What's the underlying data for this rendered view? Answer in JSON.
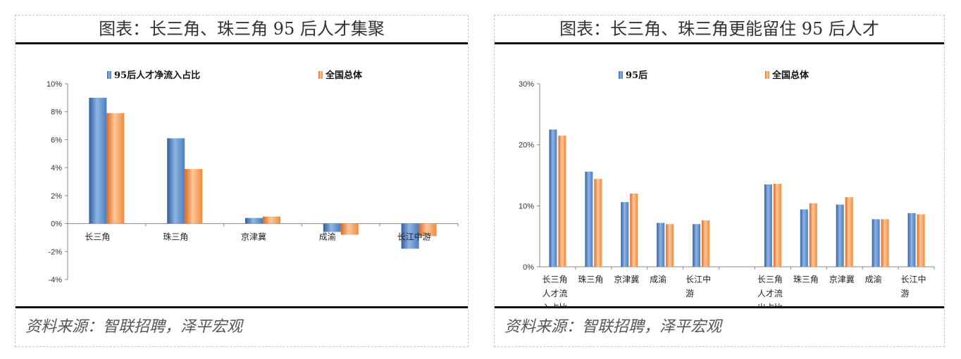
{
  "left": {
    "title": "图表：长三角、珠三角 95 后人才集聚",
    "source": "资料来源：智联招聘，泽平宏观",
    "chart_data": {
      "type": "bar",
      "categories": [
        "长三角",
        "珠三角",
        "京津冀",
        "成渝",
        "长江中游"
      ],
      "series": [
        {
          "name": "95后人才净流入占比",
          "values": [
            9.0,
            6.1,
            0.4,
            -0.6,
            -1.8
          ]
        },
        {
          "name": "全国总体",
          "values": [
            7.9,
            3.9,
            0.5,
            -0.8,
            -0.9
          ]
        }
      ],
      "ylim": [
        -4,
        10
      ],
      "yticks": [
        -4,
        -2,
        0,
        2,
        4,
        6,
        8,
        10
      ],
      "ytick_labels": [
        "-4%",
        "-2%",
        "0%",
        "2%",
        "4%",
        "6%",
        "8%",
        "10%"
      ],
      "legend_position": "top",
      "colors": [
        "#4a7fc1",
        "#f08a3c"
      ]
    }
  },
  "right": {
    "title": "图表：长三角、珠三角更能留住 95 后人才",
    "source": "资料来源：智联招聘，泽平宏观",
    "chart_data": {
      "type": "bar",
      "groups": [
        {
          "label": "长三角人才流入占比",
          "categories": [
            "长三角\n人才流\n入占比",
            "珠三角",
            "京津冀",
            "成渝",
            "长江中\n游"
          ]
        },
        {
          "label": "长三角人才流出占比",
          "categories": [
            "长三角\n人才流\n出占比",
            "珠三角",
            "京津冀",
            "成渝",
            "长江中\n游"
          ]
        }
      ],
      "series": [
        {
          "name": "95后",
          "values": [
            22.5,
            15.6,
            10.6,
            7.2,
            7.0,
            13.5,
            9.4,
            10.2,
            7.8,
            8.8
          ]
        },
        {
          "name": "全国总体",
          "values": [
            21.5,
            14.4,
            12.0,
            7.0,
            7.6,
            13.6,
            10.4,
            11.4,
            7.8,
            8.6
          ]
        }
      ],
      "ylim": [
        0,
        30
      ],
      "yticks": [
        0,
        10,
        20,
        30
      ],
      "ytick_labels": [
        "0%",
        "10%",
        "20%",
        "30%"
      ],
      "legend_position": "top",
      "colors": [
        "#4a7fc1",
        "#f08a3c"
      ]
    }
  }
}
